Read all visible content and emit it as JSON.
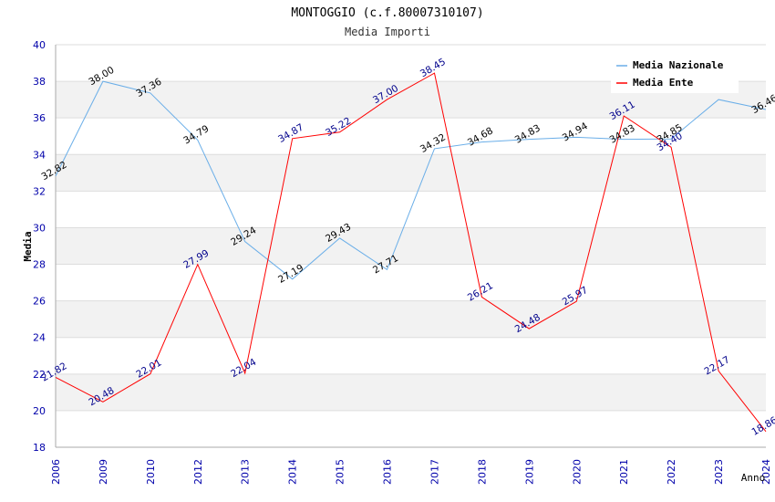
{
  "chart_data": {
    "type": "line",
    "title": "MONTOGGIO (c.f.80007310107)",
    "subtitle": "Media Importi",
    "xlabel": "Anno",
    "ylabel": "Media",
    "ylim": [
      18,
      40
    ],
    "yticks": [
      "18",
      "20",
      "22",
      "24",
      "26",
      "28",
      "30",
      "32",
      "34",
      "36",
      "38",
      "40"
    ],
    "categories": [
      "2006",
      "2009",
      "2010",
      "2012",
      "2013",
      "2014",
      "2015",
      "2016",
      "2017",
      "2018",
      "2019",
      "2020",
      "2021",
      "2022",
      "2023",
      "2024"
    ],
    "series": [
      {
        "name": "Media Nazionale",
        "color": "#6aaee8",
        "values": [
          32.82,
          38.0,
          37.36,
          34.79,
          29.24,
          27.19,
          29.43,
          27.71,
          34.32,
          34.68,
          34.83,
          34.94,
          34.83,
          34.85,
          37.0,
          36.46
        ],
        "labels": [
          "32.82",
          "38.00",
          "37.36",
          "34.79",
          "29.24",
          "27.19",
          "29.43",
          "27.71",
          "34.32",
          "34.68",
          "34.83",
          "34.94",
          "34.83",
          "34.85",
          "",
          "36.46"
        ]
      },
      {
        "name": "Media Ente",
        "color": "#ff0000",
        "values": [
          21.82,
          20.48,
          22.01,
          27.99,
          22.04,
          34.87,
          35.22,
          37.0,
          38.45,
          26.21,
          24.48,
          25.97,
          36.11,
          34.4,
          22.17,
          18.86
        ],
        "labels": [
          "21.82",
          "20.48",
          "22.01",
          "27.99",
          "22.04",
          "34.87",
          "35.22",
          "37.00",
          "38.45",
          "26.21",
          "24.48",
          "25.97",
          "36.11",
          "34.40",
          "22.17",
          "18.86"
        ]
      }
    ],
    "grid": true,
    "legend_position": "top-right"
  }
}
